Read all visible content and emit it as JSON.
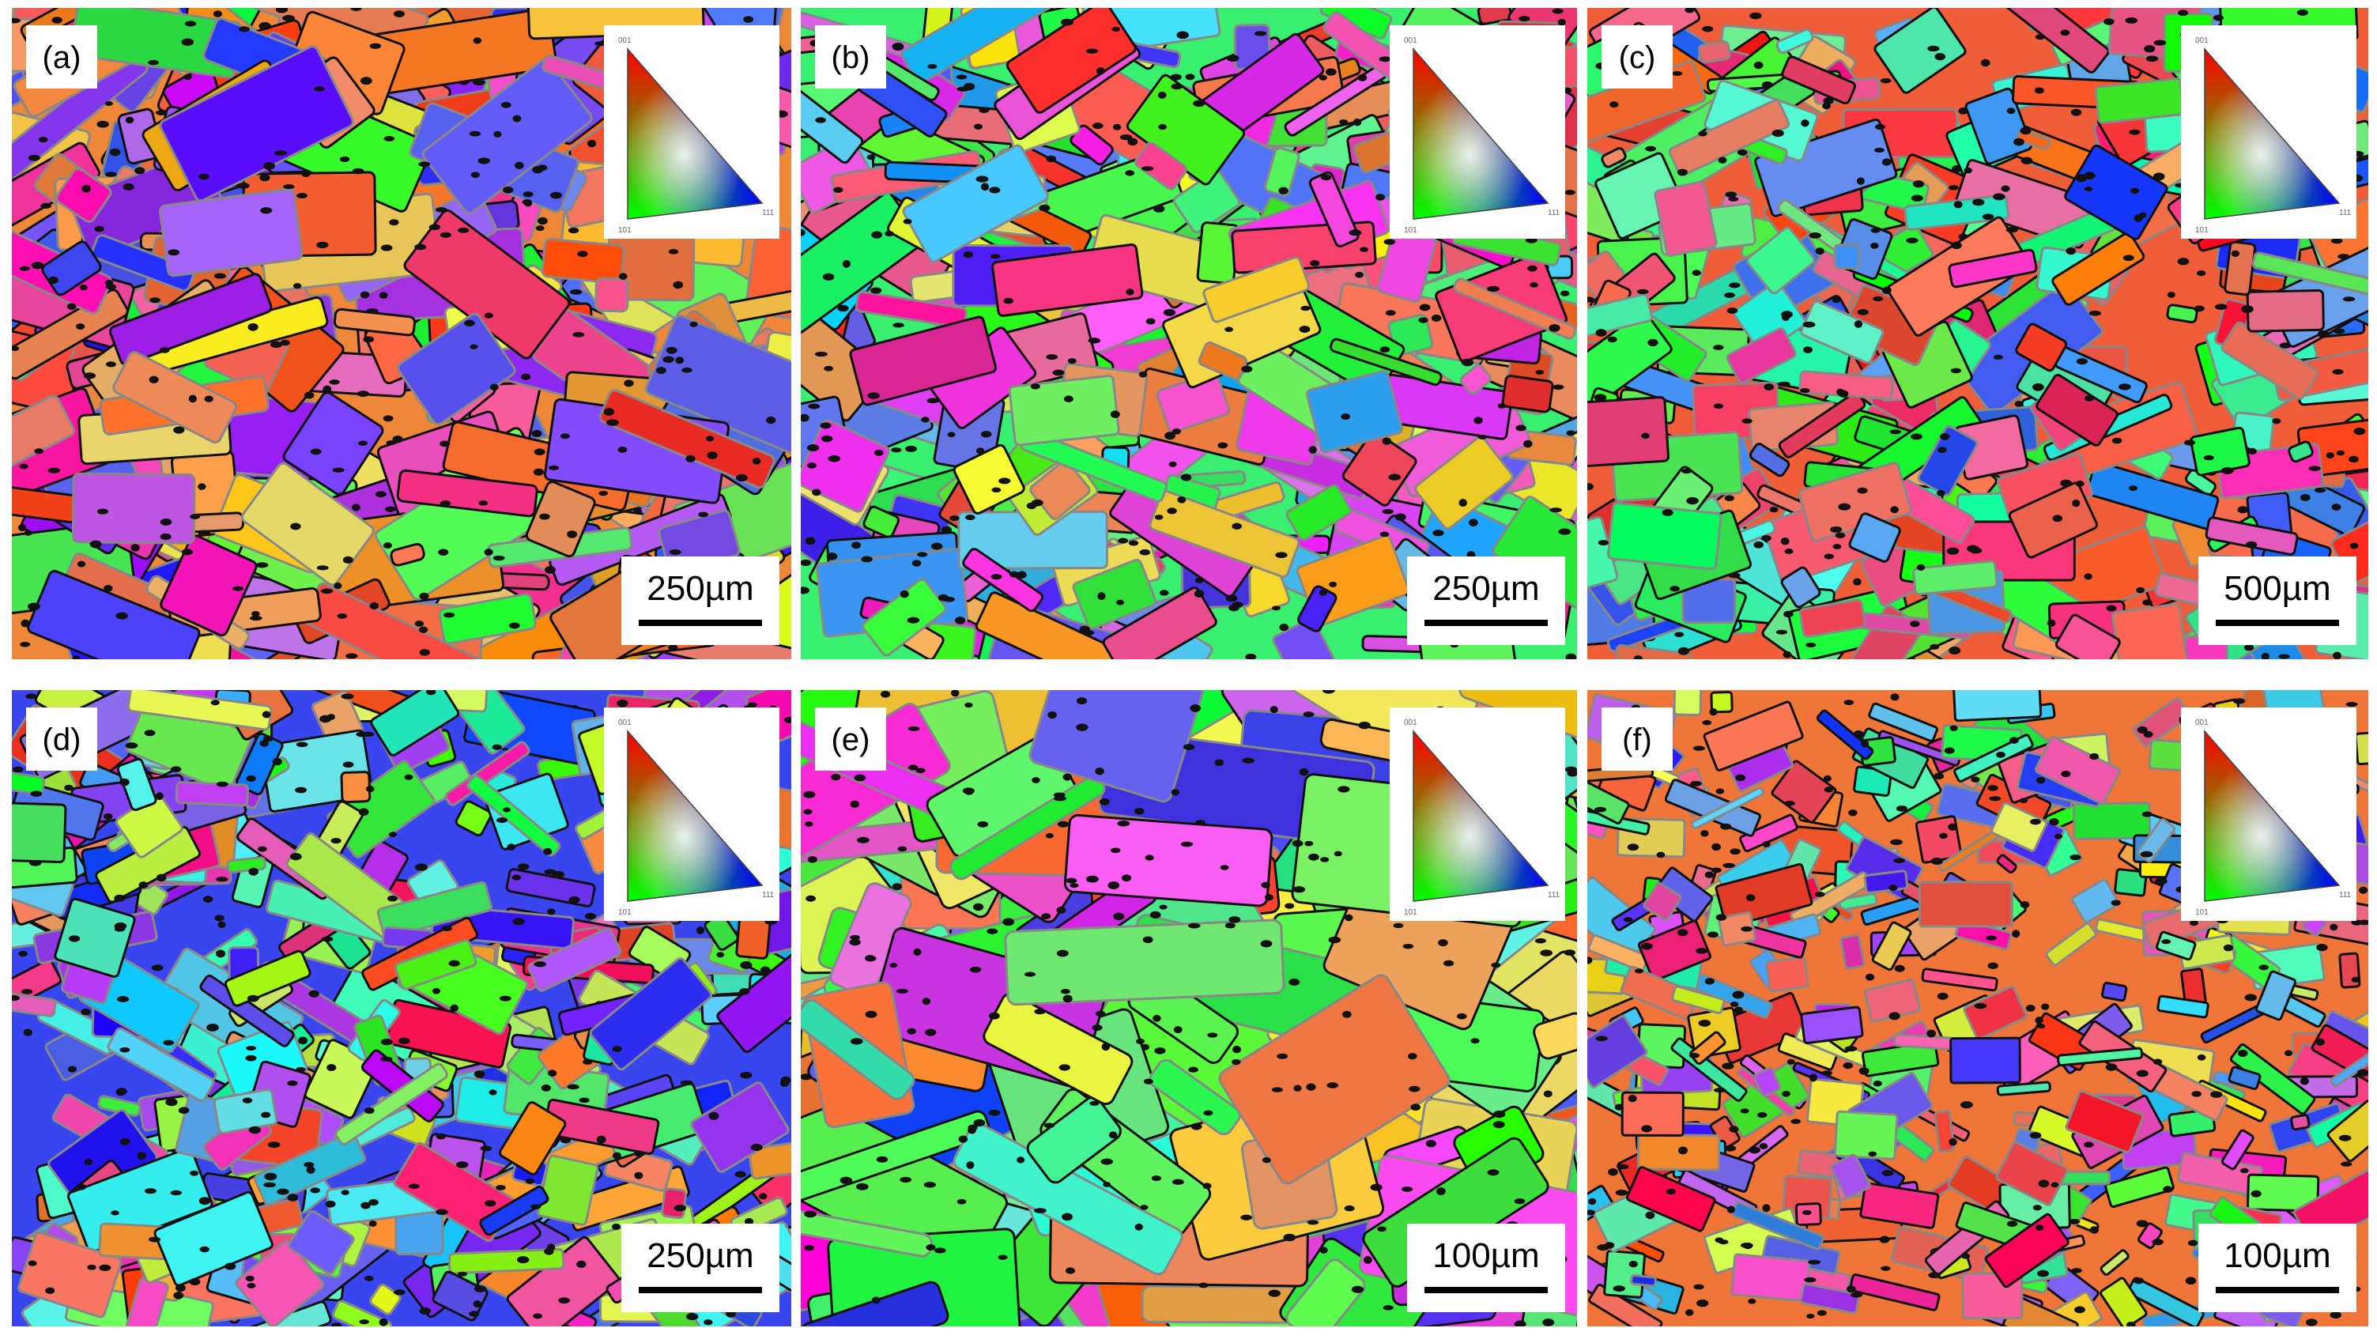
{
  "panels": [
    {
      "label": "(a)",
      "scale_bar": "250µm"
    },
    {
      "label": "(b)",
      "scale_bar": "250µm"
    },
    {
      "label": "(c)",
      "scale_bar": "500µm"
    },
    {
      "label": "(d)",
      "scale_bar": "250µm"
    },
    {
      "label": "(e)",
      "scale_bar": "100µm"
    },
    {
      "label": "(f)",
      "scale_bar": "100µm"
    }
  ],
  "ipf_legend": {
    "corner_labels": [
      "001",
      "101",
      "111"
    ]
  }
}
